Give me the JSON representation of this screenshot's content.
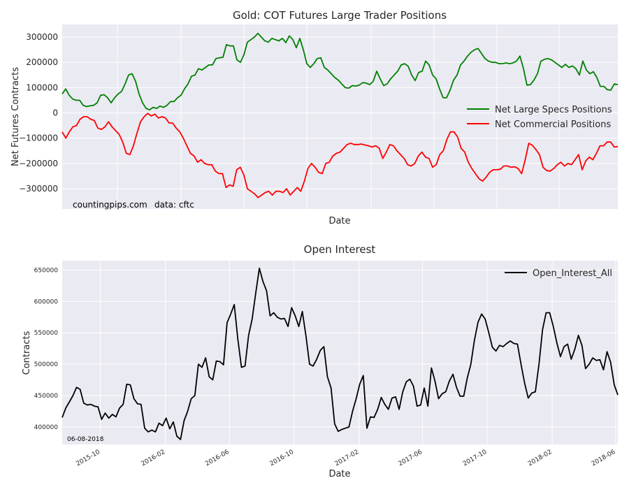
{
  "chart_data": [
    {
      "type": "line",
      "title": "Gold: COT Futures Large Trader Positions",
      "xlabel": "Date",
      "ylabel": "Net Futures Contracts",
      "ylim": [
        -380000,
        350000
      ],
      "yticks": [
        -300000,
        -200000,
        -100000,
        0,
        100000,
        200000,
        300000
      ],
      "ytick_labels": [
        "−300000",
        "−200000",
        "−100000",
        "0",
        "100000",
        "200000",
        "300000"
      ],
      "grid": true,
      "legend": "center-right",
      "annotations": [
        "countingpips.com",
        "data: cftc"
      ],
      "series": [
        {
          "name": "Net Large Specs Positions",
          "color": "#008000",
          "values": [
            75000,
            95000,
            70000,
            55000,
            50000,
            50000,
            30000,
            25000,
            28000,
            30000,
            40000,
            70000,
            72000,
            60000,
            40000,
            60000,
            75000,
            85000,
            115000,
            150000,
            155000,
            125000,
            75000,
            40000,
            18000,
            12000,
            22000,
            18000,
            27000,
            22000,
            30000,
            45000,
            45000,
            60000,
            70000,
            95000,
            115000,
            145000,
            150000,
            175000,
            170000,
            180000,
            190000,
            190000,
            215000,
            218000,
            220000,
            270000,
            265000,
            265000,
            210000,
            200000,
            230000,
            280000,
            290000,
            300000,
            315000,
            300000,
            285000,
            280000,
            295000,
            290000,
            285000,
            295000,
            278000,
            305000,
            290000,
            258000,
            295000,
            250000,
            195000,
            180000,
            195000,
            215000,
            218000,
            180000,
            170000,
            155000,
            140000,
            130000,
            115000,
            100000,
            98000,
            108000,
            106000,
            110000,
            120000,
            118000,
            112000,
            125000,
            165000,
            135000,
            108000,
            115000,
            135000,
            150000,
            165000,
            190000,
            195000,
            185000,
            150000,
            128000,
            160000,
            165000,
            205000,
            190000,
            150000,
            135000,
            95000,
            60000,
            60000,
            90000,
            130000,
            150000,
            190000,
            205000,
            225000,
            240000,
            250000,
            255000,
            235000,
            215000,
            205000,
            200000,
            200000,
            195000,
            195000,
            198000,
            195000,
            198000,
            205000,
            225000,
            175000,
            110000,
            112000,
            130000,
            155000,
            205000,
            212000,
            215000,
            210000,
            200000,
            190000,
            180000,
            192000,
            180000,
            186000,
            175000,
            150000,
            205000,
            170000,
            155000,
            163000,
            140000,
            105000,
            105000,
            92000,
            90000,
            115000,
            112000
          ]
        },
        {
          "name": "Net Commercial Positions",
          "color": "#ff0000",
          "values": [
            -75000,
            -100000,
            -75000,
            -55000,
            -50000,
            -25000,
            -15000,
            -15000,
            -25000,
            -30000,
            -60000,
            -65000,
            -55000,
            -35000,
            -55000,
            -70000,
            -85000,
            -115000,
            -160000,
            -165000,
            -130000,
            -80000,
            -35000,
            -15000,
            -2000,
            -12000,
            -5000,
            -20000,
            -15000,
            -20000,
            -40000,
            -40000,
            -60000,
            -75000,
            -100000,
            -130000,
            -160000,
            -170000,
            -195000,
            -185000,
            -200000,
            -205000,
            -205000,
            -230000,
            -240000,
            -240000,
            -295000,
            -285000,
            -290000,
            -225000,
            -215000,
            -245000,
            -300000,
            -310000,
            -320000,
            -335000,
            -325000,
            -315000,
            -310000,
            -325000,
            -310000,
            -310000,
            -315000,
            -300000,
            -325000,
            -310000,
            -295000,
            -310000,
            -270000,
            -220000,
            -200000,
            -215000,
            -235000,
            -240000,
            -200000,
            -195000,
            -170000,
            -160000,
            -155000,
            -140000,
            -125000,
            -120000,
            -125000,
            -125000,
            -123000,
            -127000,
            -130000,
            -135000,
            -130000,
            -140000,
            -180000,
            -155000,
            -125000,
            -130000,
            -150000,
            -165000,
            -180000,
            -205000,
            -210000,
            -200000,
            -170000,
            -155000,
            -175000,
            -180000,
            -215000,
            -205000,
            -165000,
            -150000,
            -105000,
            -75000,
            -75000,
            -95000,
            -140000,
            -155000,
            -195000,
            -220000,
            -240000,
            -260000,
            -270000,
            -255000,
            -235000,
            -225000,
            -225000,
            -223000,
            -210000,
            -210000,
            -215000,
            -213000,
            -220000,
            -240000,
            -185000,
            -120000,
            -128000,
            -145000,
            -165000,
            -215000,
            -228000,
            -230000,
            -220000,
            -205000,
            -195000,
            -210000,
            -200000,
            -205000,
            -185000,
            -165000,
            -225000,
            -190000,
            -175000,
            -185000,
            -160000,
            -130000,
            -130000,
            -115000,
            -115000,
            -135000,
            -133000
          ]
        }
      ]
    },
    {
      "type": "line",
      "title": "Open Interest",
      "xlabel": "Date",
      "ylabel": "Contracts",
      "ylim": [
        372000,
        665000
      ],
      "yticks": [
        400000,
        450000,
        500000,
        550000,
        600000,
        650000
      ],
      "ytick_labels": [
        "400000",
        "450000",
        "500000",
        "550000",
        "600000",
        "650000"
      ],
      "x_range": [
        "2015-07-21",
        "2018-06-05"
      ],
      "xticks": [
        "2015-10",
        "2016-02",
        "2016-06",
        "2016-10",
        "2017-02",
        "2017-06",
        "2017-10",
        "2018-02",
        "2018-06"
      ],
      "grid": true,
      "legend": "top-right",
      "annotations": [
        "06-08-2018"
      ],
      "series": [
        {
          "name": "Open_Interest_All",
          "color": "#000000",
          "values": [
            415000,
            430000,
            440000,
            450000,
            463000,
            460000,
            438000,
            435000,
            436000,
            433000,
            432000,
            412000,
            422000,
            414000,
            420000,
            416000,
            430000,
            436000,
            468000,
            467000,
            445000,
            437000,
            436000,
            398000,
            392000,
            395000,
            392000,
            406000,
            402000,
            414000,
            397000,
            408000,
            385000,
            380000,
            410000,
            425000,
            445000,
            450000,
            500000,
            495000,
            510000,
            480000,
            475000,
            505000,
            504000,
            499000,
            566000,
            580000,
            595000,
            540000,
            495000,
            497000,
            546000,
            572000,
            614000,
            653000,
            632000,
            617000,
            577000,
            582000,
            575000,
            572000,
            573000,
            560000,
            590000,
            577000,
            560000,
            584000,
            545000,
            500000,
            497000,
            508000,
            522000,
            528000,
            480000,
            462000,
            405000,
            393000,
            396000,
            398000,
            400000,
            425000,
            445000,
            468000,
            482000,
            398000,
            416000,
            415000,
            428000,
            447000,
            436000,
            428000,
            446000,
            448000,
            428000,
            456000,
            472000,
            476000,
            465000,
            433000,
            435000,
            462000,
            433000,
            494000,
            473000,
            445000,
            453000,
            456000,
            473000,
            484000,
            463000,
            449000,
            449000,
            478000,
            500000,
            538000,
            567000,
            580000,
            572000,
            550000,
            527000,
            521000,
            530000,
            528000,
            533000,
            537000,
            533000,
            532000,
            500000,
            470000,
            446000,
            454000,
            456000,
            500000,
            555000,
            582000,
            582000,
            560000,
            534000,
            512000,
            528000,
            532000,
            508000,
            524000,
            546000,
            530000,
            493000,
            500000,
            510000,
            506000,
            507000,
            491000,
            520000,
            503000,
            467000,
            451000
          ]
        }
      ]
    }
  ]
}
